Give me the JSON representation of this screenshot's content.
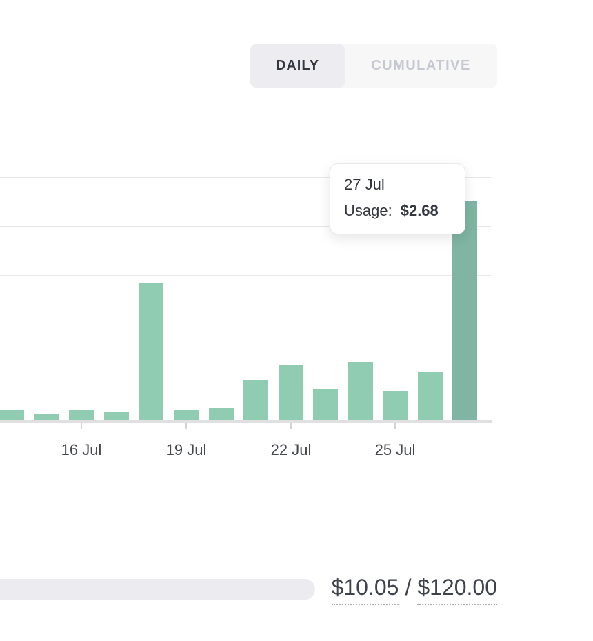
{
  "view_toggle": {
    "daily_label": "DAILY",
    "cumulative_label": "CUMULATIVE",
    "selected": "DAILY"
  },
  "tooltip": {
    "date": "27 Jul",
    "label": "Usage:",
    "value": "$2.68"
  },
  "chart_data": {
    "type": "bar",
    "title": "",
    "categories": [
      "14 Jul",
      "15 Jul",
      "16 Jul",
      "17 Jul",
      "18 Jul",
      "19 Jul",
      "20 Jul",
      "21 Jul",
      "22 Jul",
      "23 Jul",
      "24 Jul",
      "25 Jul",
      "26 Jul",
      "27 Jul"
    ],
    "values": [
      0.13,
      0.08,
      0.13,
      0.1,
      1.68,
      0.13,
      0.15,
      0.5,
      0.67,
      0.39,
      0.72,
      0.35,
      0.59,
      2.68
    ],
    "x_tick_labels": [
      "16 Jul",
      "19 Jul",
      "22 Jul",
      "25 Jul"
    ],
    "ylim": [
      0,
      3.0
    ],
    "gridline_step": 0.6,
    "grid": true,
    "legend_position": "none",
    "hovered_index": 13,
    "colors": {
      "bar": "#90ccb2",
      "bar_hover": "#7fb5a2",
      "gridline": "#e7e7e9",
      "axis": "#e0e0e3"
    }
  },
  "usage_summary": {
    "used": "$10.05",
    "separator": "/",
    "limit": "$120.00"
  },
  "ui_colors": {
    "toggle_active_bg": "#ececf1",
    "toggle_active_text": "#353740",
    "toggle_inactive_bg": "#f7f7f8",
    "toggle_inactive_text": "#c6c8d1",
    "progress_track": "#ebebf0"
  }
}
